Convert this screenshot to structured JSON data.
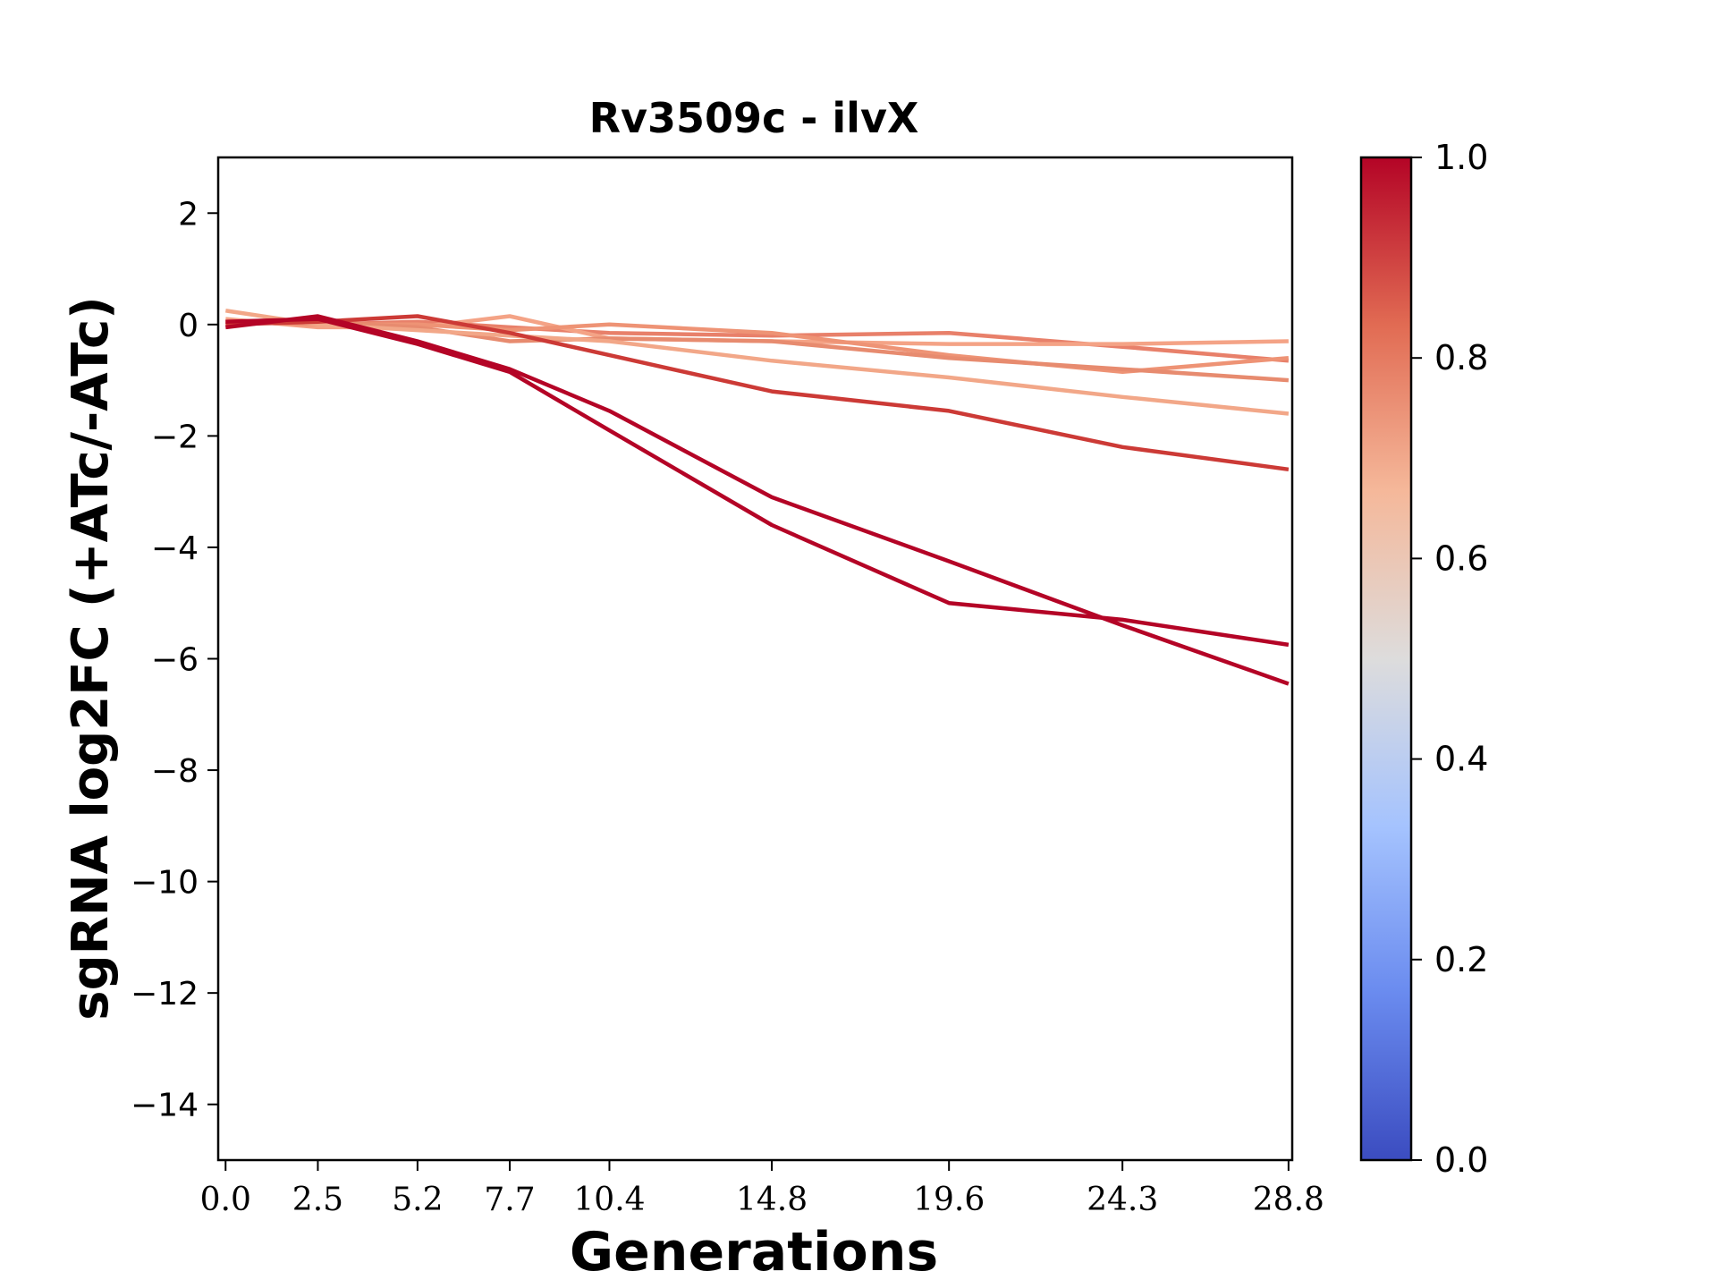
{
  "chart_data": {
    "type": "line",
    "title": "Rv3509c - ilvX",
    "xlabel": "Generations",
    "ylabel": "sgRNA log2FC (+ATc/-ATc)",
    "x": [
      0.0,
      2.5,
      5.2,
      7.7,
      10.4,
      14.8,
      19.6,
      24.3,
      28.8
    ],
    "x_tick_labels": [
      "0.0",
      "2.5",
      "5.2",
      "7.7",
      "10.4",
      "14.8",
      "19.6",
      "24.3",
      "28.8"
    ],
    "xlim": [
      -0.2,
      28.9
    ],
    "ylim": [
      -15,
      3
    ],
    "y_ticks": [
      2,
      0,
      -2,
      -4,
      -6,
      -8,
      -10,
      -12,
      -14
    ],
    "y_tick_labels": [
      "2",
      "0",
      "−2",
      "−4",
      "−6",
      "−8",
      "−10",
      "−12",
      "−14"
    ],
    "grid": false,
    "colormap": "coolwarm",
    "colorbar": {
      "range": [
        0.0,
        1.0
      ],
      "ticks": [
        0.0,
        0.2,
        0.4,
        0.6,
        0.8,
        1.0
      ],
      "tick_labels": [
        "0.0",
        "0.2",
        "0.4",
        "0.6",
        "0.8",
        "1.0"
      ],
      "gradient": [
        "#3b4cc0",
        "#6a8bef",
        "#a5c3fe",
        "#dddcdc",
        "#f5b89a",
        "#e16b53",
        "#b40426"
      ]
    },
    "series": [
      {
        "color": "#e8806a",
        "values": [
          0.05,
          0.0,
          0.05,
          -0.05,
          -0.15,
          -0.2,
          -0.15,
          -0.4,
          -0.65
        ]
      },
      {
        "color": "#f4a386",
        "values": [
          0.1,
          -0.05,
          -0.05,
          0.15,
          -0.25,
          -0.3,
          -0.35,
          -0.35,
          -0.3
        ]
      },
      {
        "color": "#ee9375",
        "values": [
          0.05,
          0.0,
          0.0,
          -0.1,
          0.0,
          -0.15,
          -0.55,
          -0.85,
          -0.6
        ]
      },
      {
        "color": "#e78b6f",
        "values": [
          0.05,
          0.05,
          -0.05,
          -0.3,
          -0.25,
          -0.3,
          -0.6,
          -0.8,
          -1.0
        ]
      },
      {
        "color": "#f2a788",
        "values": [
          0.25,
          0.0,
          -0.1,
          -0.2,
          -0.3,
          -0.65,
          -0.95,
          -1.3,
          -1.6
        ]
      },
      {
        "color": "#cc3a36",
        "values": [
          0.0,
          0.05,
          0.15,
          -0.15,
          -0.55,
          -1.2,
          -1.55,
          -2.2,
          -2.6
        ]
      },
      {
        "color": "#b40426",
        "values": [
          -0.05,
          0.15,
          -0.3,
          -0.8,
          -1.55,
          -3.1,
          -4.25,
          -5.4,
          -6.45
        ]
      },
      {
        "color": "#b40426",
        "values": [
          0.05,
          0.1,
          -0.35,
          -0.85,
          -1.9,
          -3.6,
          -5.0,
          -5.3,
          -5.75
        ]
      }
    ]
  }
}
